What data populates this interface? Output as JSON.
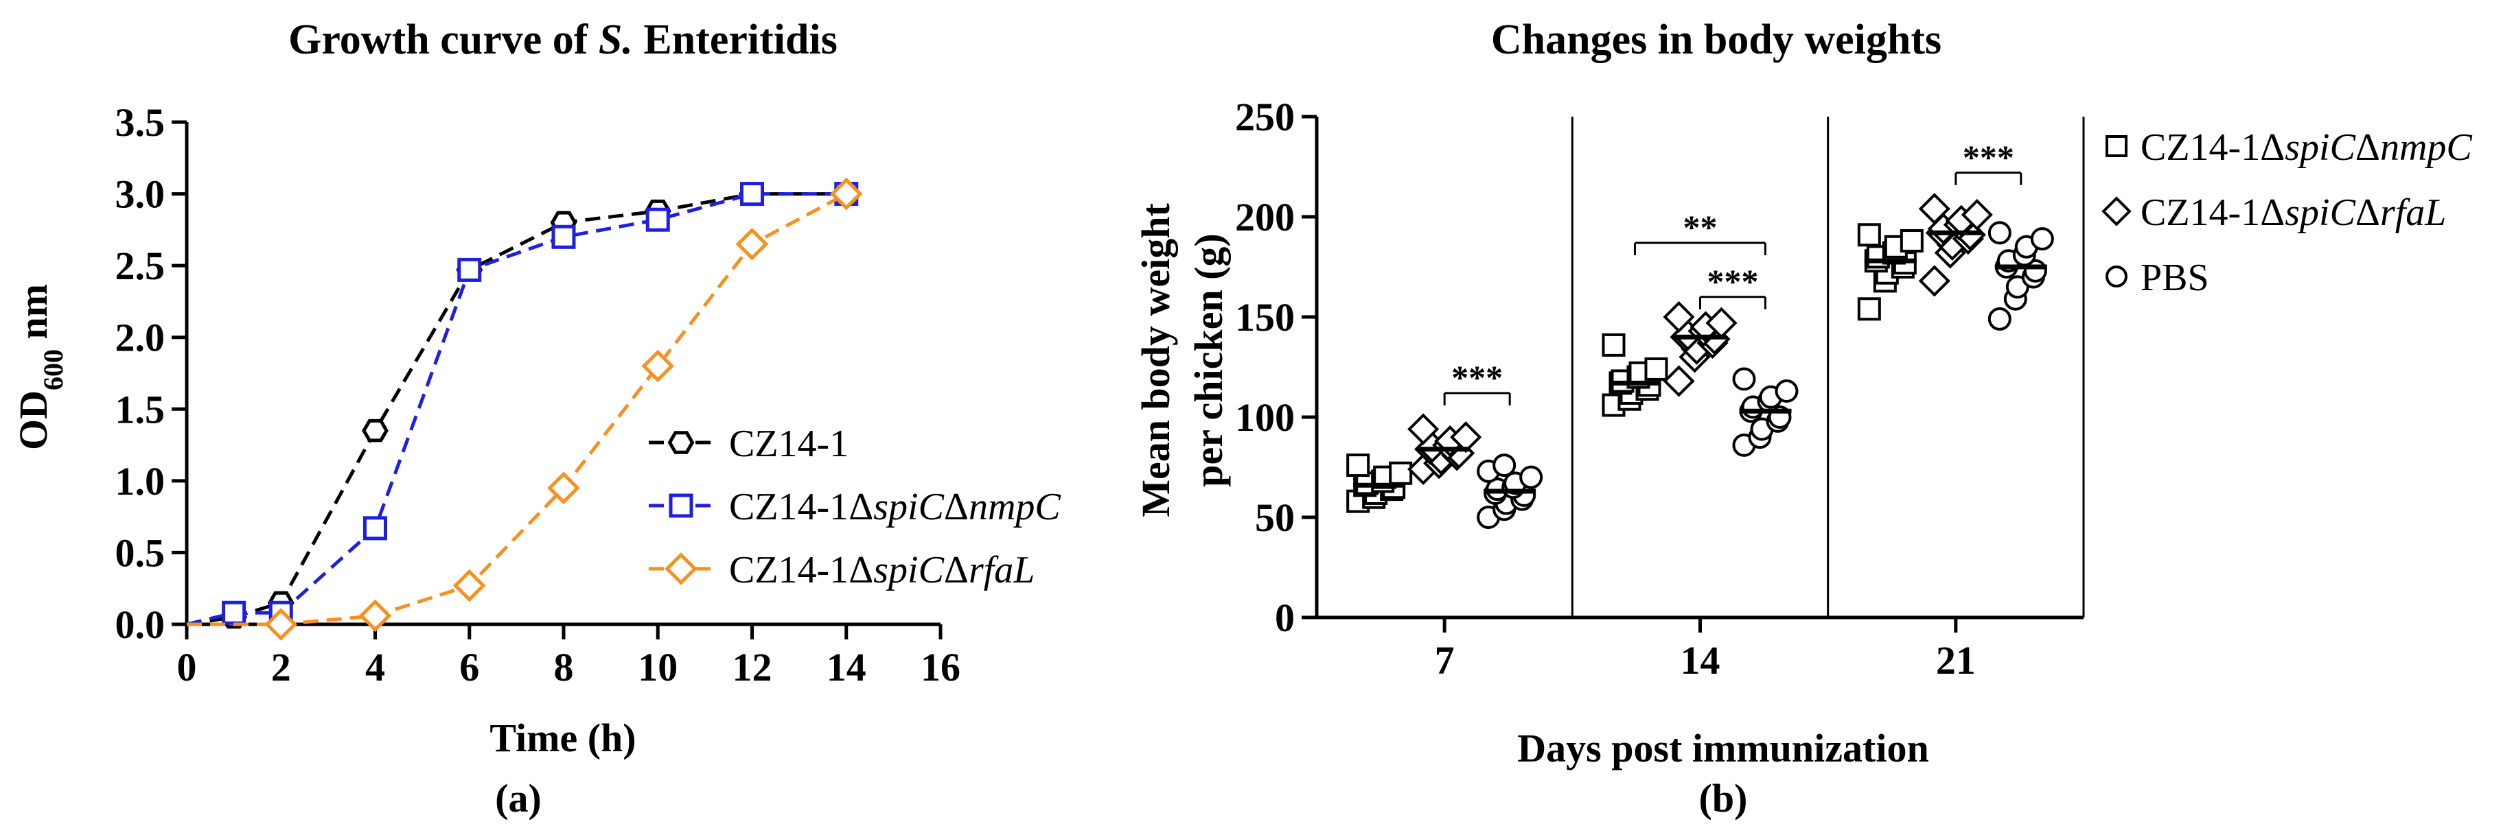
{
  "chart_data": [
    {
      "type": "line",
      "panel_label": "(a)",
      "title_prefix": "Growth curve of ",
      "title_italic": "S.",
      "title_suffix": " Enteritidis",
      "xlabel": "Time (h)",
      "ylabel_main": "OD",
      "ylabel_sub": "600",
      "ylabel_unit": " nm",
      "xlim": [
        0,
        16
      ],
      "ylim": [
        0,
        3.5
      ],
      "xticks": [
        "0",
        "2",
        "4",
        "6",
        "8",
        "10",
        "12",
        "14",
        "16"
      ],
      "yticks": [
        "0.0",
        "0.5",
        "1.0",
        "1.5",
        "2.0",
        "2.5",
        "3.0",
        "3.5"
      ],
      "series": [
        {
          "name": "CZ14-1",
          "label_parts": [
            [
              "CZ14-1",
              false
            ]
          ],
          "color": "#000000",
          "marker": "hexagon",
          "x": [
            1,
            2,
            4,
            6,
            8,
            10,
            12,
            14
          ],
          "y": [
            0.05,
            0.15,
            1.35,
            2.47,
            2.8,
            2.88,
            3.0,
            3.0
          ]
        },
        {
          "name": "CZ14-1ΔspiCΔnmpC",
          "label_parts": [
            [
              "CZ14-1Δ",
              false
            ],
            [
              "spiC",
              true
            ],
            [
              "Δ",
              false
            ],
            [
              "nmpC",
              true
            ]
          ],
          "color": "#1f1fe0",
          "marker": "square",
          "x": [
            1,
            2,
            4,
            6,
            8,
            10,
            12,
            14
          ],
          "y": [
            0.08,
            0.08,
            0.67,
            2.47,
            2.7,
            2.82,
            3.0,
            3.0
          ]
        },
        {
          "name": "CZ14-1ΔspiCΔrfaL",
          "label_parts": [
            [
              "CZ14-1Δ",
              false
            ],
            [
              "spiC",
              true
            ],
            [
              "Δ",
              false
            ],
            [
              "rfaL",
              true
            ]
          ],
          "color": "#f7901e",
          "marker": "diamond",
          "x": [
            2,
            4,
            6,
            8,
            10,
            12,
            14
          ],
          "y": [
            0.0,
            0.06,
            0.27,
            0.95,
            1.8,
            2.65,
            3.0
          ]
        }
      ]
    },
    {
      "type": "scatter",
      "panel_label": "(b)",
      "title": "Changes in body weights",
      "xlabel": "Days post immunization",
      "ylabel_line1": "Mean body weight",
      "ylabel_line2": "per chicken (g)",
      "ylim": [
        0,
        250
      ],
      "yticks": [
        "0",
        "50",
        "100",
        "150",
        "200",
        "250"
      ],
      "categories": [
        "7",
        "14",
        "21"
      ],
      "legend": [
        {
          "parts": [
            [
              "CZ14-1Δ",
              false
            ],
            [
              "spiC",
              true
            ],
            [
              "Δ",
              false
            ],
            [
              "nmpC",
              true
            ]
          ],
          "marker": "square"
        },
        {
          "parts": [
            [
              "CZ14-1Δ",
              false
            ],
            [
              "spiC",
              true
            ],
            [
              "Δ",
              false
            ],
            [
              "rfaL",
              true
            ]
          ],
          "marker": "diamond"
        },
        {
          "parts": [
            [
              "PBS",
              false
            ]
          ],
          "marker": "circle"
        }
      ],
      "groups": [
        {
          "day": "7",
          "series": [
            {
              "marker": "square",
              "mean": 66,
              "values": [
                58,
                60,
                62,
                64,
                65,
                66,
                67,
                68,
                70,
                72,
                76
              ]
            },
            {
              "marker": "diamond",
              "mean": 84,
              "values": [
                74,
                77,
                79,
                81,
                82,
                84,
                85,
                86,
                88,
                90,
                94
              ]
            },
            {
              "marker": "circle",
              "mean": 63,
              "values": [
                50,
                54,
                57,
                59,
                61,
                62,
                64,
                65,
                67,
                70,
                73,
                76
              ]
            }
          ],
          "significance": [
            {
              "from": 1,
              "to": 2,
              "y": 112,
              "label": "***"
            }
          ]
        },
        {
          "day": "14",
          "series": [
            {
              "marker": "square",
              "mean": 117,
              "values": [
                106,
                109,
                112,
                114,
                116,
                117,
                118,
                120,
                122,
                124,
                136
              ]
            },
            {
              "marker": "diamond",
              "mean": 140,
              "values": [
                118,
                130,
                134,
                137,
                139,
                140,
                141,
                143,
                145,
                147,
                150
              ]
            },
            {
              "marker": "circle",
              "mean": 103,
              "values": [
                86,
                90,
                94,
                98,
                100,
                103,
                105,
                108,
                110,
                113,
                119
              ]
            }
          ],
          "significance": [
            {
              "from": 0,
              "to": 2,
              "y": 187,
              "label": "**"
            },
            {
              "from": 1,
              "to": 2,
              "y": 160,
              "label": "***"
            }
          ]
        },
        {
          "day": "21",
          "series": [
            {
              "marker": "square",
              "mean": 178,
              "values": [
                154,
                168,
                172,
                175,
                177,
                178,
                180,
                182,
                185,
                188,
                191
              ]
            },
            {
              "marker": "diamond",
              "mean": 192,
              "values": [
                168,
                182,
                186,
                189,
                191,
                192,
                194,
                196,
                198,
                201,
                204
              ]
            },
            {
              "marker": "circle",
              "mean": 175,
              "values": [
                149,
                159,
                165,
                170,
                173,
                175,
                178,
                181,
                185,
                189,
                192
              ]
            }
          ],
          "significance": [
            {
              "from": 1,
              "to": 2,
              "y": 222,
              "label": "***"
            }
          ]
        }
      ]
    }
  ]
}
